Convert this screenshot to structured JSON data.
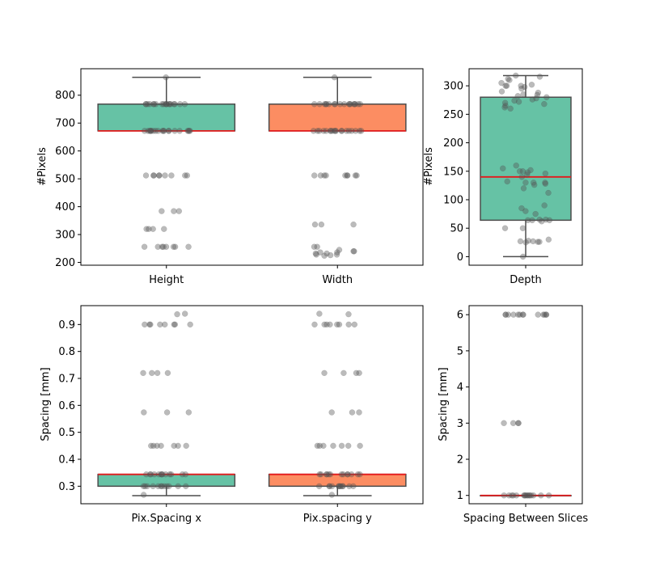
{
  "chart_data": [
    {
      "type": "box",
      "title": "",
      "ylabel": "#Pixels",
      "categories": [
        "Height",
        "Width"
      ],
      "ylim": [
        190,
        895
      ],
      "yticks": [
        200,
        300,
        400,
        500,
        600,
        700,
        800
      ],
      "box_colors": [
        "#66c2a5",
        "#fc8d62"
      ],
      "median_color": "#e41a1c",
      "boxes": [
        {
          "name": "Height",
          "q1": 672,
          "median": 672,
          "q3": 768,
          "whisker_low": 672,
          "whisker_high": 864,
          "points": [
            864,
            768,
            768,
            768,
            768,
            768,
            768,
            768,
            768,
            768,
            768,
            768,
            768,
            768,
            768,
            768,
            768,
            768,
            768,
            768,
            672,
            672,
            672,
            672,
            672,
            672,
            672,
            672,
            672,
            672,
            672,
            672,
            672,
            672,
            672,
            672,
            672,
            672,
            672,
            672,
            512,
            512,
            512,
            512,
            512,
            512,
            512,
            512,
            512,
            384,
            384,
            384,
            320,
            320,
            320,
            320,
            256,
            256,
            256,
            256,
            256,
            256,
            256,
            256
          ]
        },
        {
          "name": "Width",
          "q1": 672,
          "median": 672,
          "q3": 768,
          "whisker_low": 672,
          "whisker_high": 864,
          "points": [
            864,
            768,
            768,
            768,
            768,
            768,
            768,
            768,
            768,
            768,
            768,
            768,
            768,
            768,
            768,
            768,
            768,
            768,
            768,
            672,
            672,
            672,
            672,
            672,
            672,
            672,
            672,
            672,
            672,
            672,
            672,
            672,
            672,
            672,
            672,
            672,
            672,
            672,
            512,
            512,
            512,
            512,
            512,
            512,
            512,
            512,
            512,
            336,
            336,
            336,
            256,
            256,
            245,
            240,
            240,
            236,
            236,
            232,
            232,
            228,
            228,
            226,
            224
          ]
        }
      ]
    },
    {
      "type": "box",
      "title": "",
      "ylabel": "#Pixels",
      "categories": [
        "Depth"
      ],
      "ylim": [
        -15,
        330
      ],
      "yticks": [
        0,
        50,
        100,
        150,
        200,
        250,
        300
      ],
      "box_colors": [
        "#66c2a5"
      ],
      "median_color": "#e41a1c",
      "boxes": [
        {
          "name": "Depth",
          "q1": 64,
          "median": 140,
          "q3": 280,
          "whisker_low": 0,
          "whisker_high": 318,
          "points": [
            318,
            316,
            312,
            310,
            305,
            302,
            300,
            300,
            300,
            298,
            295,
            290,
            288,
            285,
            284,
            282,
            280,
            278,
            276,
            274,
            272,
            270,
            268,
            265,
            262,
            260,
            160,
            155,
            152,
            150,
            150,
            148,
            146,
            144,
            140,
            132,
            130,
            130,
            130,
            128,
            126,
            120,
            112,
            90,
            85,
            80,
            75,
            65,
            65,
            64,
            64,
            64,
            62,
            50,
            50,
            30,
            28,
            27,
            27,
            26,
            26,
            25,
            0
          ]
        }
      ]
    },
    {
      "type": "box",
      "title": "",
      "ylabel": "Spacing [mm]",
      "categories": [
        "Pix.Spacing x",
        "Pix.spacing y"
      ],
      "ylim": [
        0.235,
        0.97
      ],
      "yticks": [
        0.3,
        0.4,
        0.5,
        0.6,
        0.7,
        0.8,
        0.9
      ],
      "box_colors": [
        "#66c2a5",
        "#fc8d62"
      ],
      "median_color": "#e41a1c",
      "boxes": [
        {
          "name": "Pix.Spacing x",
          "q1": 0.3,
          "median": 0.344,
          "q3": 0.344,
          "whisker_low": 0.265,
          "whisker_high": 0.344,
          "points": [
            0.94,
            0.938,
            0.9,
            0.9,
            0.9,
            0.9,
            0.9,
            0.9,
            0.9,
            0.9,
            0.72,
            0.72,
            0.72,
            0.72,
            0.574,
            0.574,
            0.574,
            0.45,
            0.45,
            0.45,
            0.45,
            0.45,
            0.45,
            0.45,
            0.344,
            0.344,
            0.344,
            0.344,
            0.344,
            0.344,
            0.344,
            0.344,
            0.344,
            0.344,
            0.344,
            0.344,
            0.344,
            0.3,
            0.3,
            0.3,
            0.3,
            0.3,
            0.3,
            0.3,
            0.3,
            0.3,
            0.3,
            0.3,
            0.3,
            0.268
          ]
        },
        {
          "name": "Pix.spacing y",
          "q1": 0.3,
          "median": 0.344,
          "q3": 0.344,
          "whisker_low": 0.265,
          "whisker_high": 0.344,
          "points": [
            0.94,
            0.938,
            0.9,
            0.9,
            0.9,
            0.9,
            0.9,
            0.9,
            0.9,
            0.9,
            0.72,
            0.72,
            0.72,
            0.72,
            0.574,
            0.574,
            0.574,
            0.45,
            0.45,
            0.45,
            0.45,
            0.45,
            0.45,
            0.45,
            0.344,
            0.344,
            0.344,
            0.344,
            0.344,
            0.344,
            0.344,
            0.344,
            0.344,
            0.344,
            0.344,
            0.344,
            0.344,
            0.3,
            0.3,
            0.3,
            0.3,
            0.3,
            0.3,
            0.3,
            0.3,
            0.3,
            0.3,
            0.3,
            0.3,
            0.268
          ]
        }
      ]
    },
    {
      "type": "box",
      "title": "",
      "ylabel": "Spacing [mm]",
      "categories": [
        "Spacing Between Slices"
      ],
      "ylim": [
        0.77,
        6.25
      ],
      "yticks": [
        1,
        2,
        3,
        4,
        5,
        6
      ],
      "box_colors": [
        "#66c2a5"
      ],
      "median_color": "#e41a1c",
      "boxes": [
        {
          "name": "Spacing Between Slices",
          "q1": 1,
          "median": 1,
          "q3": 1,
          "whisker_low": 1,
          "whisker_high": 1,
          "points": [
            6,
            6,
            6,
            6,
            6,
            6,
            6,
            6,
            6,
            6,
            6,
            6,
            6,
            3,
            3,
            3,
            3,
            1,
            1,
            1,
            1,
            1,
            1,
            1,
            1,
            1,
            1,
            1,
            1,
            1,
            1,
            1,
            1
          ]
        }
      ]
    }
  ]
}
